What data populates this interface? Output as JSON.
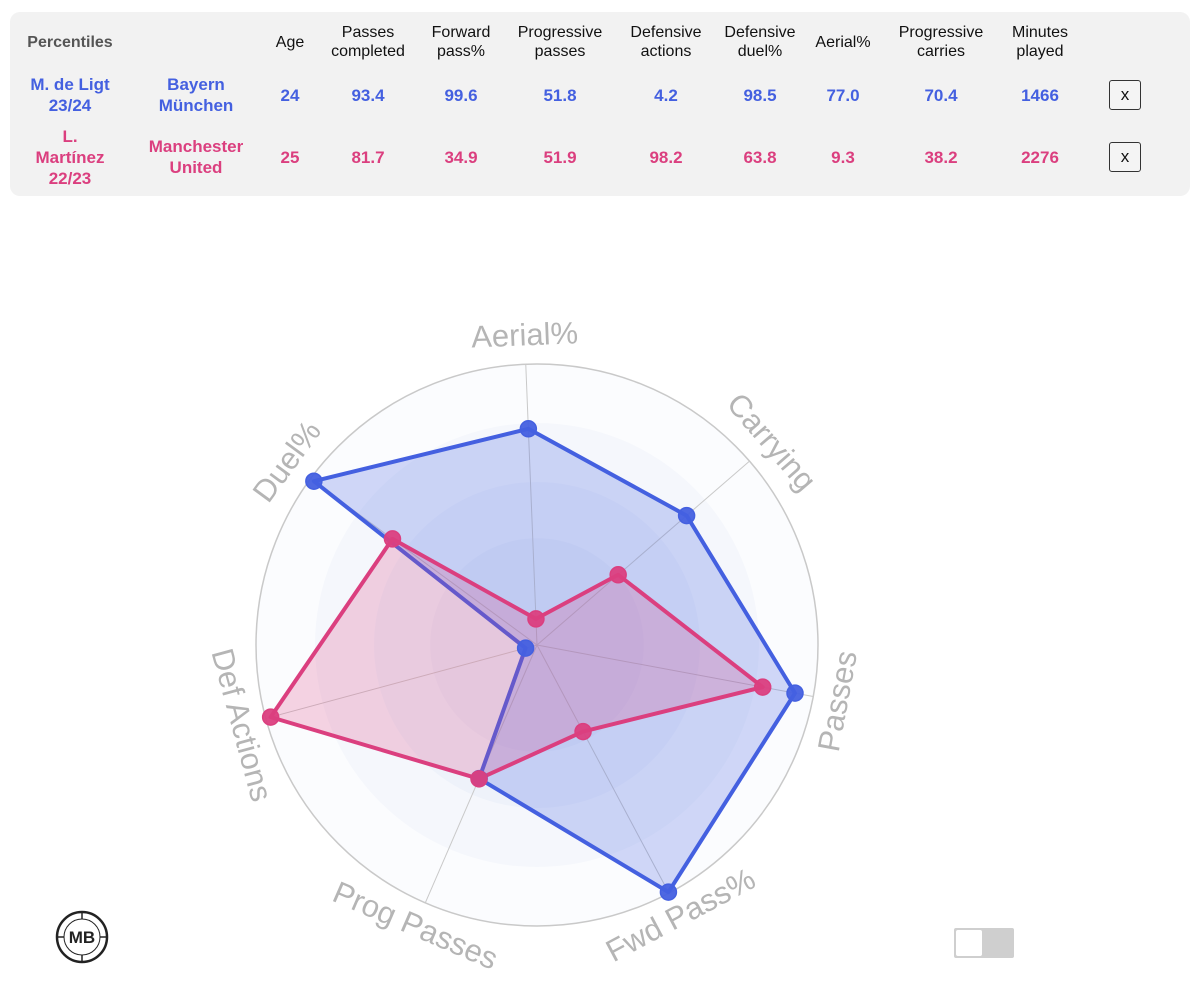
{
  "table": {
    "title": "Percentiles",
    "headers": [
      {
        "key": "age",
        "label": [
          "Age"
        ]
      },
      {
        "key": "passes_completed",
        "label": [
          "Passes",
          "completed"
        ]
      },
      {
        "key": "forward_pass",
        "label": [
          "Forward",
          "pass%"
        ]
      },
      {
        "key": "progressive_passes",
        "label": [
          "Progressive",
          "passes"
        ]
      },
      {
        "key": "defensive_actions",
        "label": [
          "Defensive",
          "actions"
        ]
      },
      {
        "key": "defensive_duel",
        "label": [
          "Defensive",
          "duel%"
        ]
      },
      {
        "key": "aerial",
        "label": [
          "Aerial%"
        ]
      },
      {
        "key": "progressive_carries",
        "label": [
          "Progressive",
          "carries"
        ]
      },
      {
        "key": "minutes_played",
        "label": [
          "Minutes",
          "played"
        ]
      }
    ],
    "remove_label": "x",
    "players": [
      {
        "name_lines": [
          "M. de Ligt",
          "23/24"
        ],
        "team_lines": [
          "Bayern",
          "München"
        ],
        "values": [
          "24",
          "93.4",
          "99.6",
          "51.8",
          "4.2",
          "98.5",
          "77.0",
          "70.4",
          "1466"
        ]
      },
      {
        "name_lines": [
          "L.",
          "Martínez",
          "22/23"
        ],
        "team_lines": [
          "Manchester",
          "United"
        ],
        "values": [
          "25",
          "81.7",
          "34.9",
          "51.9",
          "98.2",
          "63.8",
          "9.3",
          "38.2",
          "2276"
        ]
      }
    ]
  },
  "colors": {
    "player1": "#4460e0",
    "player2": "#db3f7f",
    "grid": "#c9c9c9"
  },
  "chart_data": {
    "type": "radar",
    "axes": [
      "Aerial%",
      "Carrying",
      "Passes",
      "Fwd Pass%",
      "Prog Passes",
      "Def Actions",
      "Duel%"
    ],
    "range": [
      0,
      100
    ],
    "series": [
      {
        "name": "M. de Ligt 23/24",
        "values": [
          77.0,
          70.4,
          93.4,
          99.6,
          51.8,
          4.2,
          98.5
        ]
      },
      {
        "name": "L. Martínez 22/23",
        "values": [
          9.3,
          38.2,
          81.7,
          34.9,
          51.9,
          98.2,
          63.8
        ]
      }
    ]
  },
  "logo_text": "MB"
}
